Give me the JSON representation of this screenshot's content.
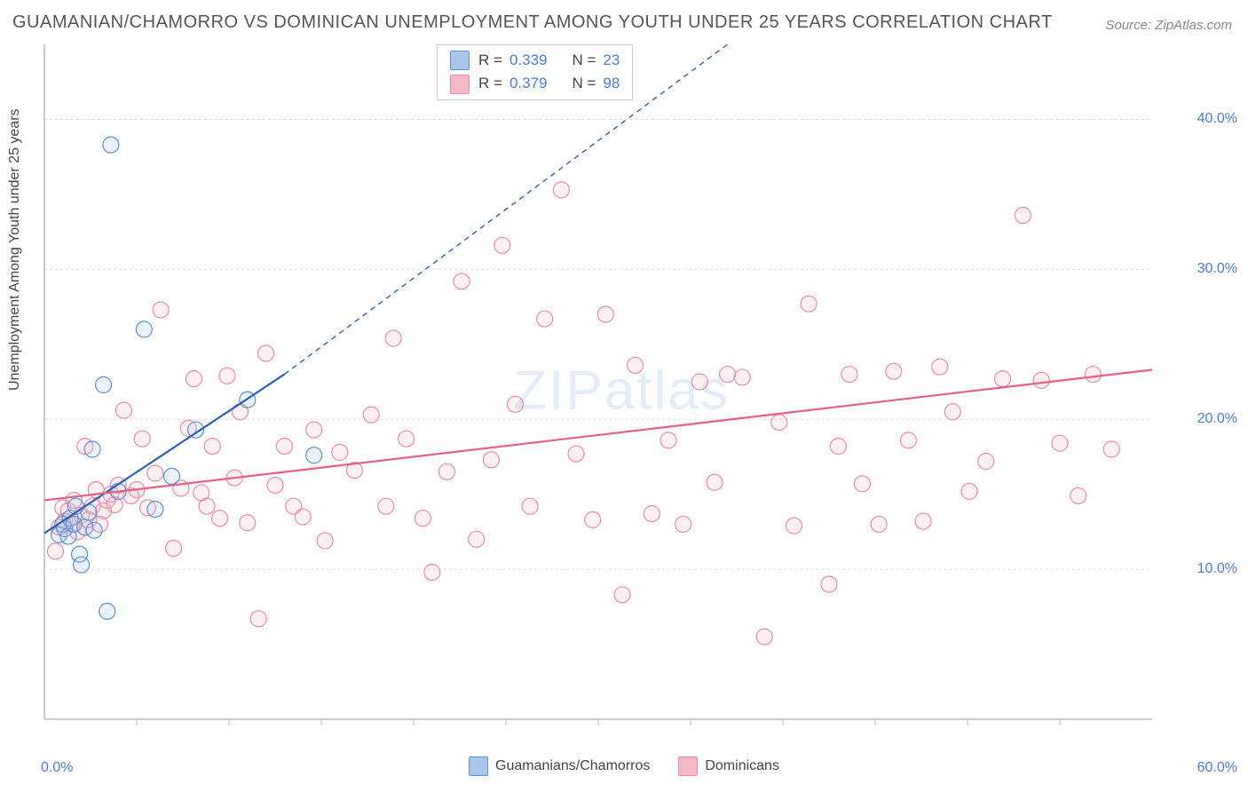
{
  "title": "GUAMANIAN/CHAMORRO VS DOMINICAN UNEMPLOYMENT AMONG YOUTH UNDER 25 YEARS CORRELATION CHART",
  "source": "Source: ZipAtlas.com",
  "y_axis_label": "Unemployment Among Youth under 25 years",
  "watermark": "ZIPatlas",
  "chart": {
    "type": "scatter",
    "background_color": "#ffffff",
    "grid_color": "#dddddd",
    "grid_dash": "3,3",
    "axis_color": "#bbbbbb",
    "text_color": "#444444",
    "tick_label_color": "#4a7dd6",
    "title_fontsize": 20,
    "label_fontsize": 16,
    "tick_fontsize": 16,
    "xlim": [
      0,
      60
    ],
    "ylim": [
      0,
      45
    ],
    "x_ticks": [
      0,
      60
    ],
    "x_tick_labels": [
      "0.0%",
      "60.0%"
    ],
    "x_minor_ticks": [
      5,
      10,
      15,
      20,
      25,
      30,
      35,
      40,
      45,
      50,
      55
    ],
    "y_ticks": [
      10,
      20,
      30,
      40
    ],
    "y_tick_labels": [
      "10.0%",
      "20.0%",
      "30.0%",
      "40.0%"
    ],
    "marker_radius": 9,
    "marker_stroke_width": 1.2,
    "marker_fill_opacity": 0.22,
    "series": [
      {
        "name": "Guamanians/Chamorros",
        "color_stroke": "#5b8fd8",
        "color_fill": "#a9c6ea",
        "r": 0.339,
        "n": 23,
        "trend": {
          "x1": 0,
          "y1": 12.4,
          "x2": 13,
          "y2": 23,
          "color": "#2d5fb2",
          "width": 2.2,
          "dash_from_x": 13,
          "dash_to_x": 37,
          "dash_to_y": 45
        },
        "points": [
          [
            0.8,
            12.3
          ],
          [
            1.0,
            13.0
          ],
          [
            1.1,
            12.7
          ],
          [
            1.3,
            12.2
          ],
          [
            1.4,
            13.4
          ],
          [
            1.6,
            13.0
          ],
          [
            1.7,
            14.2
          ],
          [
            1.9,
            11.0
          ],
          [
            2.0,
            10.3
          ],
          [
            2.2,
            12.8
          ],
          [
            2.4,
            13.8
          ],
          [
            2.6,
            18.0
          ],
          [
            2.7,
            12.6
          ],
          [
            3.2,
            22.3
          ],
          [
            3.4,
            7.2
          ],
          [
            3.6,
            38.3
          ],
          [
            4.0,
            15.2
          ],
          [
            5.4,
            26.0
          ],
          [
            6.0,
            14.0
          ],
          [
            6.9,
            16.2
          ],
          [
            8.2,
            19.3
          ],
          [
            11.0,
            21.3
          ],
          [
            14.6,
            17.6
          ]
        ]
      },
      {
        "name": "Dominicans",
        "color_stroke": "#e98ba4",
        "color_fill": "#f5b9c7",
        "r": 0.379,
        "n": 98,
        "trend": {
          "x1": 0,
          "y1": 14.6,
          "x2": 60,
          "y2": 23.3,
          "color": "#e75f87",
          "width": 2.2
        },
        "points": [
          [
            0.6,
            11.2
          ],
          [
            0.8,
            12.8
          ],
          [
            1.0,
            14.1
          ],
          [
            1.1,
            13.2
          ],
          [
            1.3,
            13.9
          ],
          [
            1.5,
            13.0
          ],
          [
            1.6,
            14.6
          ],
          [
            1.8,
            12.5
          ],
          [
            2.0,
            13.6
          ],
          [
            2.2,
            18.2
          ],
          [
            2.4,
            13.3
          ],
          [
            2.6,
            14.2
          ],
          [
            2.8,
            15.3
          ],
          [
            3.0,
            13.0
          ],
          [
            3.2,
            13.9
          ],
          [
            3.4,
            14.6
          ],
          [
            3.6,
            15.0
          ],
          [
            3.8,
            14.3
          ],
          [
            4.0,
            15.6
          ],
          [
            4.3,
            20.6
          ],
          [
            4.7,
            14.9
          ],
          [
            5.0,
            15.3
          ],
          [
            5.3,
            18.7
          ],
          [
            5.6,
            14.1
          ],
          [
            6.0,
            16.4
          ],
          [
            6.3,
            27.3
          ],
          [
            7.0,
            11.4
          ],
          [
            7.4,
            15.4
          ],
          [
            7.8,
            19.4
          ],
          [
            8.1,
            22.7
          ],
          [
            8.5,
            15.1
          ],
          [
            8.8,
            14.2
          ],
          [
            9.1,
            18.2
          ],
          [
            9.5,
            13.4
          ],
          [
            9.9,
            22.9
          ],
          [
            10.3,
            16.1
          ],
          [
            10.6,
            20.5
          ],
          [
            11.0,
            13.1
          ],
          [
            11.6,
            6.7
          ],
          [
            12.0,
            24.4
          ],
          [
            12.5,
            15.6
          ],
          [
            13.0,
            18.2
          ],
          [
            13.5,
            14.2
          ],
          [
            14.0,
            13.5
          ],
          [
            14.6,
            19.3
          ],
          [
            15.2,
            11.9
          ],
          [
            16.0,
            17.8
          ],
          [
            16.8,
            16.6
          ],
          [
            17.7,
            20.3
          ],
          [
            18.5,
            14.2
          ],
          [
            18.9,
            25.4
          ],
          [
            19.6,
            18.7
          ],
          [
            20.5,
            13.4
          ],
          [
            21.0,
            9.8
          ],
          [
            21.8,
            16.5
          ],
          [
            22.6,
            29.2
          ],
          [
            23.4,
            12.0
          ],
          [
            24.2,
            17.3
          ],
          [
            24.8,
            31.6
          ],
          [
            25.5,
            21.0
          ],
          [
            26.3,
            14.2
          ],
          [
            27.1,
            26.7
          ],
          [
            28.0,
            35.3
          ],
          [
            28.8,
            17.7
          ],
          [
            29.7,
            13.3
          ],
          [
            30.4,
            27.0
          ],
          [
            31.3,
            8.3
          ],
          [
            32.0,
            23.6
          ],
          [
            32.9,
            13.7
          ],
          [
            33.8,
            18.6
          ],
          [
            34.6,
            13.0
          ],
          [
            35.5,
            22.5
          ],
          [
            36.3,
            15.8
          ],
          [
            37.0,
            23.0
          ],
          [
            37.8,
            22.8
          ],
          [
            39.0,
            5.5
          ],
          [
            39.8,
            19.8
          ],
          [
            40.6,
            12.9
          ],
          [
            41.4,
            27.7
          ],
          [
            42.5,
            9.0
          ],
          [
            43.0,
            18.2
          ],
          [
            43.6,
            23.0
          ],
          [
            44.3,
            15.7
          ],
          [
            45.2,
            13.0
          ],
          [
            46.0,
            23.2
          ],
          [
            46.8,
            18.6
          ],
          [
            47.6,
            13.2
          ],
          [
            48.5,
            23.5
          ],
          [
            49.2,
            20.5
          ],
          [
            50.1,
            15.2
          ],
          [
            51.0,
            17.2
          ],
          [
            51.9,
            22.7
          ],
          [
            53.0,
            33.6
          ],
          [
            54.0,
            22.6
          ],
          [
            55.0,
            18.4
          ],
          [
            56.0,
            14.9
          ],
          [
            56.8,
            23.0
          ],
          [
            57.8,
            18.0
          ]
        ]
      }
    ]
  },
  "stats_box": {
    "r_label": "R =",
    "n_label": "N ="
  },
  "bottom_legend": {
    "items": [
      "Guamanians/Chamorros",
      "Dominicans"
    ]
  }
}
